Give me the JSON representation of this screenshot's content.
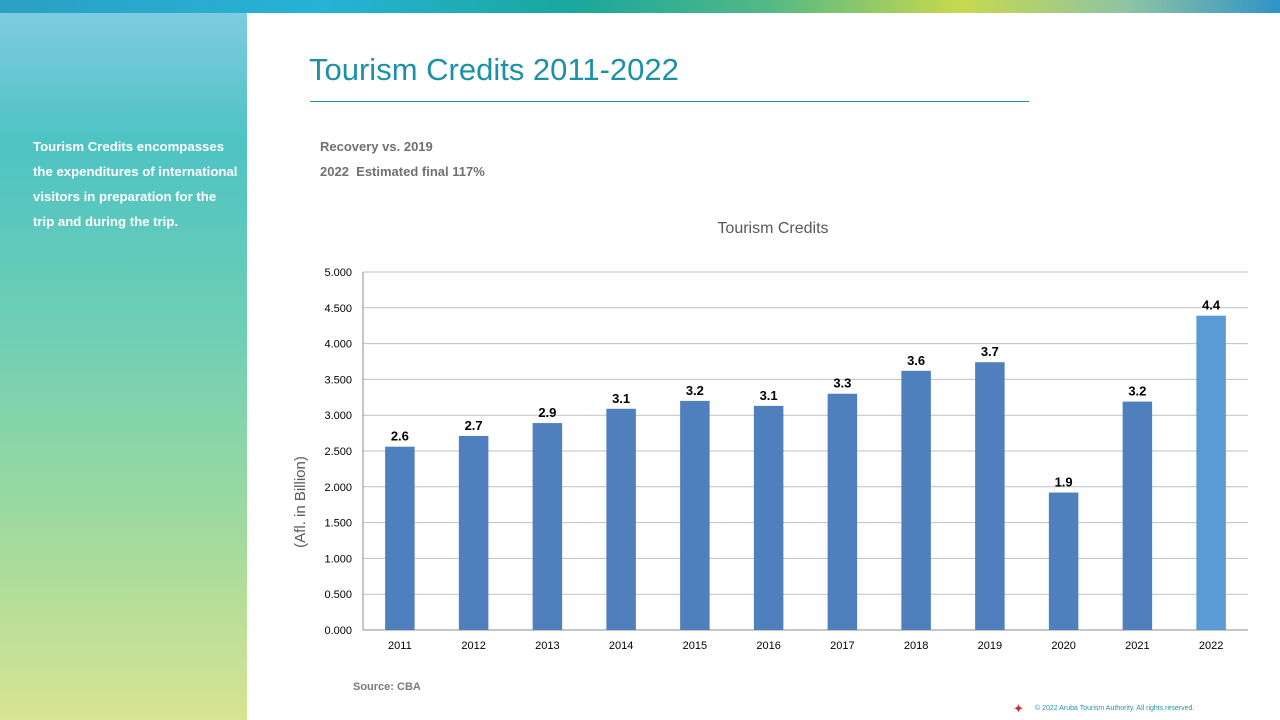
{
  "colors": {
    "bar": "#4f7fbd",
    "bar_highlight": "#5b9bd5",
    "title": "#1b91a8",
    "side_text": "#ffffff"
  },
  "slide": {
    "title": "Tourism Credits 2011-2022",
    "side_text": "Tourism Credits encompasses the expenditures of international visitors in preparation for the trip and during the trip.",
    "note_line1": "Recovery vs. 2019",
    "note_line2": "2022  Estimated final 117%",
    "source": "Source: CBA",
    "copyright": "© 2022 Aruba Tourism Authority. All rights reserved.",
    "star_icon": "star-icon"
  },
  "chart_data": {
    "type": "bar",
    "title": "Tourism Credits",
    "xlabel": "",
    "ylabel": "(Afl. in Billion)",
    "categories": [
      "2011",
      "2012",
      "2013",
      "2014",
      "2015",
      "2016",
      "2017",
      "2018",
      "2019",
      "2020",
      "2021",
      "2022"
    ],
    "values": [
      2.56,
      2.71,
      2.89,
      3.09,
      3.2,
      3.13,
      3.3,
      3.62,
      3.74,
      1.92,
      3.19,
      4.39
    ],
    "data_labels": [
      "2.6",
      "2.7",
      "2.9",
      "3.1",
      "3.2",
      "3.1",
      "3.3",
      "3.6",
      "3.7",
      "1.9",
      "3.2",
      "4.4"
    ],
    "highlight_index": 11,
    "ylim": [
      0,
      5
    ],
    "yticks": [
      "0.000",
      "0.500",
      "1.000",
      "1.500",
      "2.000",
      "2.500",
      "3.000",
      "3.500",
      "4.000",
      "4.500",
      "5.000"
    ],
    "grid": true,
    "legend": "none"
  }
}
